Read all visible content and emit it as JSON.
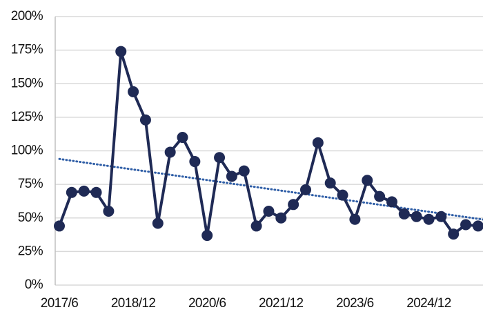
{
  "chart_data": {
    "type": "line",
    "categories": [
      "2017/6",
      null,
      null,
      null,
      null,
      null,
      "2018/12",
      null,
      null,
      null,
      null,
      null,
      "2020/6",
      null,
      null,
      null,
      null,
      null,
      "2021/12",
      null,
      null,
      null,
      null,
      null,
      "2023/6",
      null,
      null,
      null,
      null,
      null,
      "2024/12",
      null,
      null,
      null,
      null
    ],
    "series": [
      {
        "color": "#1f2a55",
        "values": [
          44,
          69,
          70,
          69,
          55,
          174,
          144,
          123,
          46,
          99,
          110,
          92,
          37,
          95,
          81,
          85,
          44,
          55,
          50,
          60,
          71,
          106,
          76,
          67,
          49,
          78,
          66,
          62,
          53,
          51,
          49,
          51,
          38,
          45,
          44
        ]
      }
    ],
    "trendline": {
      "color": "#2e5da6",
      "style": "dotted"
    },
    "ylim": [
      0,
      200
    ],
    "yticks": [
      {
        "value": 0,
        "label": "0%"
      },
      {
        "value": 25,
        "label": "25%"
      },
      {
        "value": 50,
        "label": "50%"
      },
      {
        "value": 75,
        "label": "75%"
      },
      {
        "value": 100,
        "label": "100%"
      },
      {
        "value": 125,
        "label": "125%"
      },
      {
        "value": 150,
        "label": "150%"
      },
      {
        "value": 175,
        "label": "175%"
      },
      {
        "value": 200,
        "label": "200%"
      }
    ],
    "grid": true
  }
}
